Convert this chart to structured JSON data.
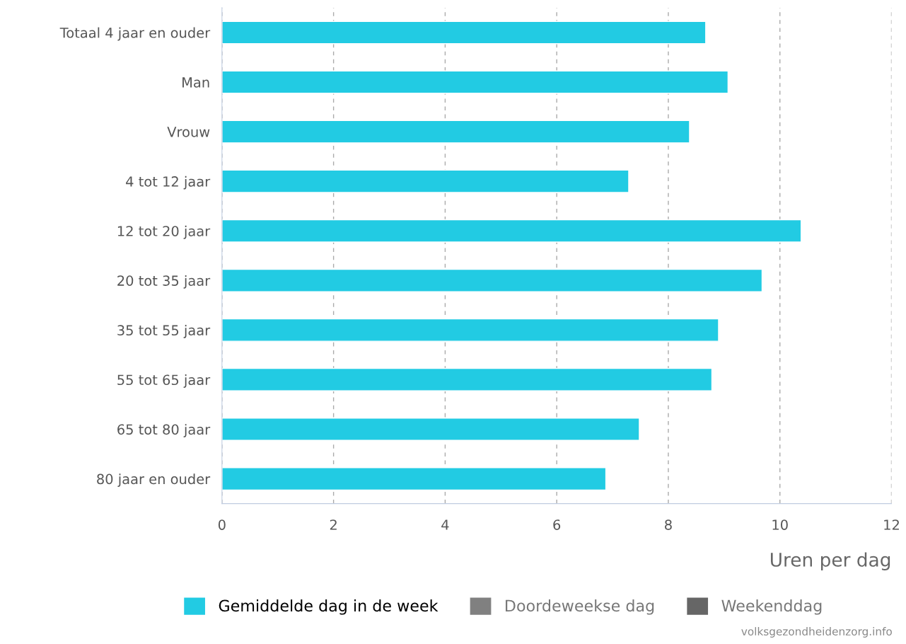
{
  "chart_data": {
    "type": "bar",
    "orientation": "horizontal",
    "categories": [
      "Totaal 4 jaar en ouder",
      "Man",
      "Vrouw",
      "4 tot 12 jaar",
      "12 tot 20 jaar",
      "20 tot 35 jaar",
      "35 tot 55 jaar",
      "55 tot 65 jaar",
      "65 tot 80 jaar",
      "80 jaar en ouder"
    ],
    "series": [
      {
        "name": "Gemiddelde dag in de week",
        "color": "#22cbe3",
        "values": [
          8.67,
          9.07,
          8.38,
          7.29,
          10.38,
          9.68,
          8.9,
          8.78,
          7.48,
          6.88
        ]
      },
      {
        "name": "Doordeweekse dag",
        "color": "#808080",
        "values": [
          null,
          null,
          null,
          null,
          null,
          null,
          null,
          null,
          null,
          null
        ]
      },
      {
        "name": "Weekenddag",
        "color": "#666666",
        "values": [
          null,
          null,
          null,
          null,
          null,
          null,
          null,
          null,
          null,
          null
        ]
      }
    ],
    "xlabel": "Uren per dag",
    "xlim": [
      0,
      12
    ],
    "xticks": [
      0,
      2,
      4,
      6,
      8,
      10,
      12
    ],
    "grid": "x",
    "legend": "bottom",
    "annotations": [
      "volksgezondheidenzorg.info"
    ]
  }
}
